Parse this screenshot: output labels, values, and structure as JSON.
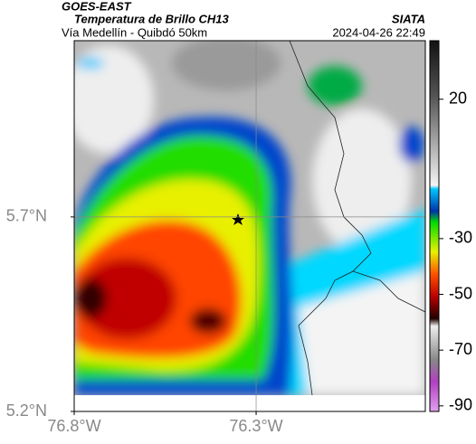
{
  "header": {
    "source": "GOES-EAST",
    "title": "Temperatura de Brillo CH13",
    "subtitle": "Vía Medellín - Quibdó 50km",
    "credit": "SIATA",
    "datetime": "2024-04-26 22:49"
  },
  "map": {
    "xlim": [
      -76.8,
      -75.835
    ],
    "ylim": [
      5.2,
      6.153
    ],
    "xticks": [
      {
        "value": -76.8,
        "label": "76.8°W"
      },
      {
        "value": -76.3,
        "label": "76.3°W"
      }
    ],
    "yticks": [
      {
        "value": 5.2,
        "label": "5.2°N"
      },
      {
        "value": 5.7,
        "label": "5.7°N"
      }
    ],
    "grid": true
  },
  "colorbar": {
    "lim": [
      -92,
      41
    ],
    "ticks": [
      20,
      -30,
      -50,
      -70,
      -90
    ]
  }
}
